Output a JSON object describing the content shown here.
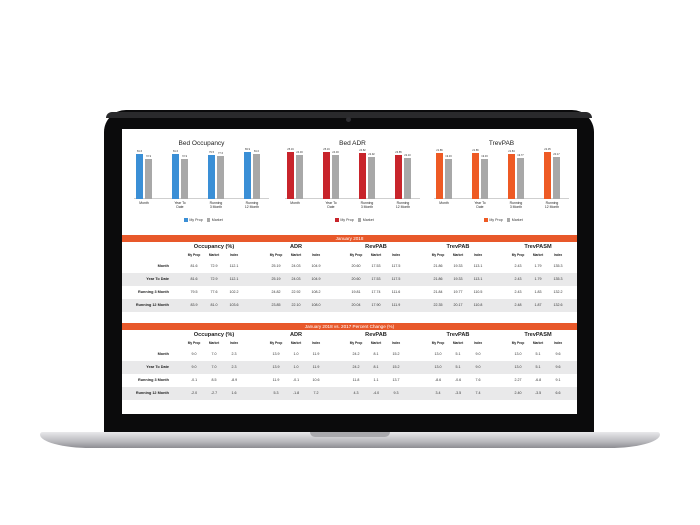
{
  "colors": {
    "blue": "#3a8fd6",
    "red": "#c8242b",
    "orange": "#ee5a24",
    "gray": "#a8a8a8",
    "section": "#e8582a"
  },
  "charts": [
    {
      "title": "Bed Occupancy",
      "color": "blue",
      "categories": [
        "Month",
        "Year To\nDate",
        "Running\n3 Month",
        "Running\n12 Month"
      ],
      "series": [
        {
          "name": "My Prop",
          "values": [
            81.6,
            81.6,
            79.5,
            83.9
          ],
          "labels": [
            "81.6",
            "81.6",
            "79.5",
            "83.9"
          ]
        },
        {
          "name": "Market",
          "values": [
            72.9,
            72.9,
            77.6,
            81.0
          ],
          "labels": [
            "72.9",
            "72.9",
            "77.6",
            "81.0"
          ]
        }
      ],
      "ylim": [
        0,
        90
      ],
      "legend": [
        "My Prop",
        "Market"
      ]
    },
    {
      "title": "Bed ADR",
      "color": "red",
      "categories": [
        "Month",
        "Year To\nDate",
        "Running\n3 Month",
        "Running\n12 Month"
      ],
      "series": [
        {
          "name": "My Prop",
          "values": [
            25.19,
            25.19,
            24.82,
            23.85
          ],
          "labels": [
            "25.19",
            "25.19",
            "24.82",
            "23.85"
          ]
        },
        {
          "name": "Market",
          "values": [
            24.03,
            24.03,
            22.92,
            22.1
          ],
          "labels": [
            "24.03",
            "24.03",
            "22.92",
            "22.10"
          ]
        }
      ],
      "ylim": [
        0,
        27
      ],
      "legend": [
        "My Prop",
        "Market"
      ]
    },
    {
      "title": "TrevPAB",
      "color": "orange",
      "categories": [
        "Month",
        "Year To\nDate",
        "Running\n3 Month",
        "Running\n12 Month"
      ],
      "series": [
        {
          "name": "My Prop",
          "values": [
            21.86,
            21.86,
            21.84,
            22.35
          ],
          "labels": [
            "21.86",
            "21.86",
            "21.84",
            "22.35"
          ]
        },
        {
          "name": "Market",
          "values": [
            19.33,
            19.33,
            19.77,
            20.17
          ],
          "labels": [
            "19.33",
            "19.33",
            "19.77",
            "20.17"
          ]
        }
      ],
      "ylim": [
        0,
        24
      ],
      "legend": [
        "My Prop",
        "Market"
      ]
    }
  ],
  "table1": {
    "title": "January 2018",
    "groups": [
      "Occupancy (%)",
      "ADR",
      "RevPAB",
      "TrevPAB",
      "TrevPASM"
    ],
    "subheaders": [
      "My Prop",
      "Market",
      "Index"
    ],
    "rows": [
      {
        "label": "Month",
        "values": [
          "81.6",
          "72.9",
          "112.1",
          "25.19",
          "24.03",
          "104.9",
          "20.60",
          "17.53",
          "117.5",
          "21.86",
          "19.33",
          "113.1",
          "2.43",
          "1.79",
          "135.3"
        ]
      },
      {
        "label": "Year To Date",
        "values": [
          "81.6",
          "72.9",
          "112.1",
          "25.19",
          "24.03",
          "104.9",
          "20.60",
          "17.53",
          "117.5",
          "21.86",
          "19.33",
          "113.1",
          "2.43",
          "1.79",
          "135.3"
        ]
      },
      {
        "label": "Running 3 Month",
        "values": [
          "79.5",
          "77.6",
          "102.2",
          "24.82",
          "22.92",
          "108.2",
          "19.81",
          "17.74",
          "111.6",
          "21.84",
          "19.77",
          "110.5",
          "2.43",
          "1.83",
          "132.2"
        ]
      },
      {
        "label": "Running 12 Month",
        "values": [
          "83.9",
          "81.0",
          "103.6",
          "23.85",
          "22.10",
          "108.0",
          "20.04",
          "17.90",
          "111.9",
          "22.35",
          "20.17",
          "110.8",
          "2.48",
          "1.87",
          "132.6"
        ]
      }
    ]
  },
  "table2": {
    "title": "January 2018 vs. 2017 Percent Change (%)",
    "groups": [
      "Occupancy (%)",
      "ADR",
      "RevPAB",
      "TrevPAB",
      "TrevPASM"
    ],
    "subheaders": [
      "My Prop",
      "Market",
      "Index"
    ],
    "rows": [
      {
        "label": "Month",
        "values": [
          "9.0",
          "7.0",
          "2.3",
          "13.9",
          "1.0",
          "11.9",
          "24.2",
          "8.1",
          "15.2",
          "13.0",
          "5.1",
          "9.0",
          "13.0",
          "5.1",
          "9.6"
        ]
      },
      {
        "label": "Year To Date",
        "values": [
          "9.0",
          "7.0",
          "2.3",
          "13.9",
          "1.0",
          "11.9",
          "24.2",
          "8.1",
          "15.2",
          "13.0",
          "5.1",
          "9.0",
          "13.0",
          "5.1",
          "9.6"
        ]
      },
      {
        "label": "Running 3 Month",
        "values": [
          "-0.1",
          "8.5",
          "-8.9",
          "11.9",
          "-0.1",
          "10.6",
          "11.8",
          "1.1",
          "13.7",
          "-8.6",
          "-0.6",
          "7.6",
          "2.27",
          "-6.8",
          "9.1"
        ]
      },
      {
        "label": "Running 12 Month",
        "values": [
          "-2.0",
          "-2.7",
          "1.6",
          "5.3",
          "-1.8",
          "7.2",
          "4.3",
          "-4.0",
          "9.3",
          "3.4",
          "-3.5",
          "7.4",
          "2.40",
          "-3.5",
          "6.6"
        ]
      }
    ]
  }
}
